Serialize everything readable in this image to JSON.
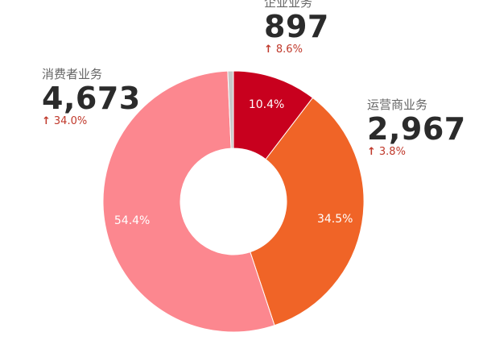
{
  "chart_data": {
    "type": "pie",
    "categories": [
      "企业业务",
      "运营商业务",
      "消费者业务",
      ""
    ],
    "values": [
      10.4,
      34.5,
      54.4,
      0.7
    ],
    "percent_labels": [
      "10.4%",
      "34.5%",
      "54.4%",
      ""
    ],
    "colors": [
      "#c8001e",
      "#f06427",
      "#fc878f",
      "#c8c8c8"
    ],
    "annotations": [
      {
        "name": "企业业务",
        "value": "897",
        "change": "8.6%"
      },
      {
        "name": "消费者业务",
        "value": "4,673",
        "change": "34.0%"
      },
      {
        "name": "运营商业务",
        "value": "2,967",
        "change": "3.8%"
      }
    ],
    "change_icon": "arrow-up-icon",
    "change_color": "#c0392b"
  }
}
